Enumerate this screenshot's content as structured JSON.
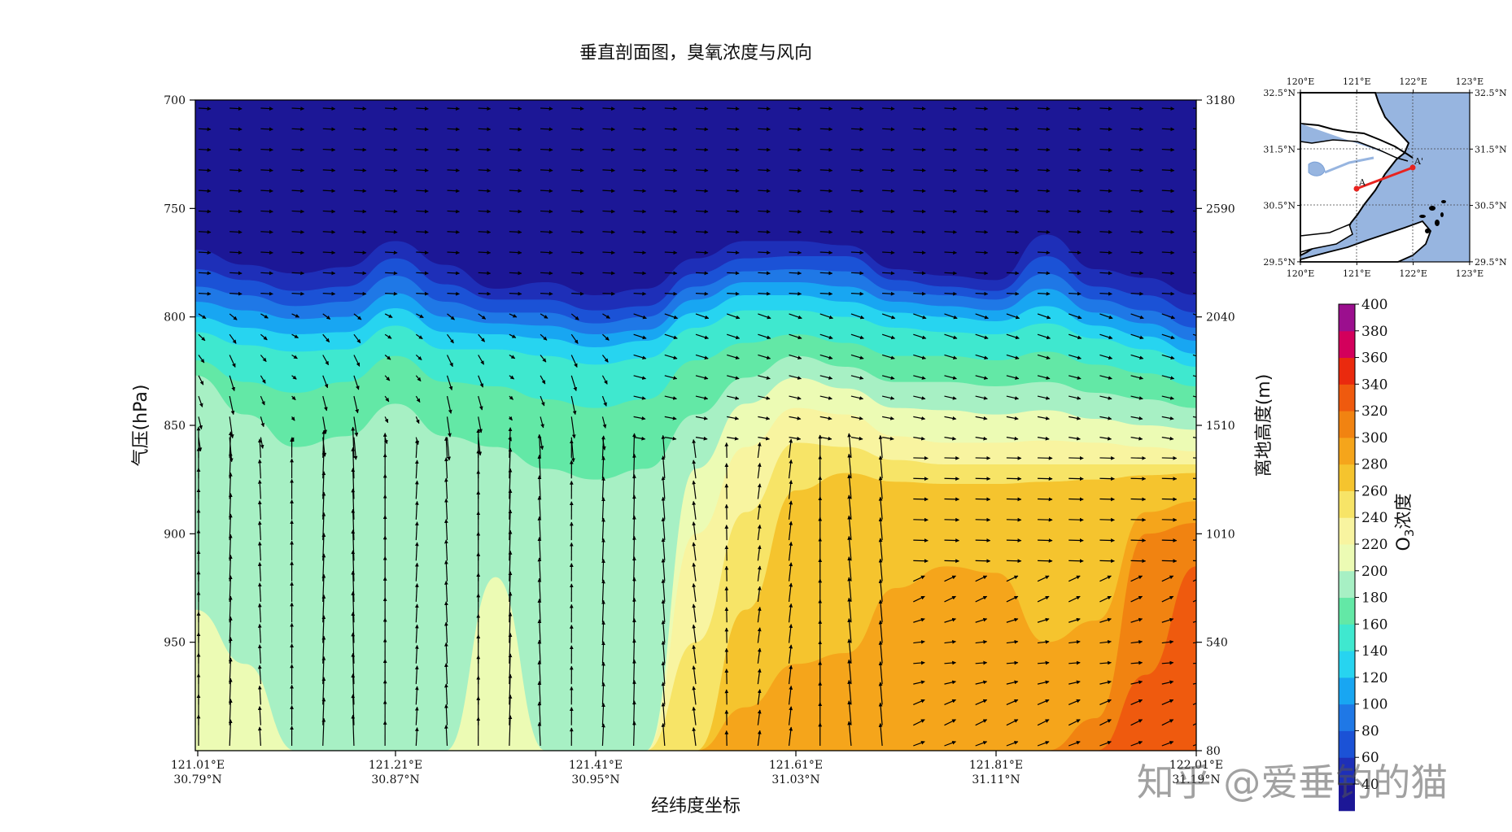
{
  "chart_data": {
    "type": "heatmap",
    "title": "垂直剖面图，臭氧浓度与风向",
    "xlabel": "经纬度坐标",
    "ylabel": "气压(hPa)",
    "y2label": "离地高度(m)",
    "colorbar_label_prefix": "O",
    "colorbar_label_sub": "3",
    "colorbar_label_suffix": "浓度",
    "x_ticks": [
      {
        "lon": "121.01°E",
        "lat": "30.79°N"
      },
      {
        "lon": "121.21°E",
        "lat": "30.87°N"
      },
      {
        "lon": "121.41°E",
        "lat": "30.95°N"
      },
      {
        "lon": "121.61°E",
        "lat": "31.03°N"
      },
      {
        "lon": "121.81°E",
        "lat": "31.11°N"
      },
      {
        "lon": "122.01°E",
        "lat": "31.19°N"
      }
    ],
    "y_left_ticks": [
      "700",
      "750",
      "800",
      "850",
      "900",
      "950"
    ],
    "y_left_values": [
      700,
      750,
      800,
      850,
      900,
      950
    ],
    "ylim": [
      1000,
      700
    ],
    "y_right_ticks": [
      "3180",
      "2590",
      "2040",
      "1510",
      "1010",
      "540",
      "80"
    ],
    "y_right_values": [
      700,
      750,
      800,
      850,
      900,
      950,
      1000
    ],
    "colorbar_levels": [
      "40",
      "60",
      "80",
      "100",
      "120",
      "140",
      "160",
      "180",
      "200",
      "220",
      "240",
      "260",
      "280",
      "300",
      "320",
      "340",
      "360",
      "380",
      "400"
    ],
    "colorbar_colors": [
      "#1c1796",
      "#1e2fb8",
      "#1b52d6",
      "#1f78e6",
      "#18a6f2",
      "#27d4f0",
      "#3fe8cf",
      "#63e8a6",
      "#a7f0c4",
      "#ecfbb4",
      "#f8f4a0",
      "#f7e467",
      "#f5c42e",
      "#f5a51b",
      "#f18311",
      "#ef5a0e",
      "#ea2a0e",
      "#d3005c",
      "#9b0f8e"
    ],
    "boundaries": {
      "levels": [
        60,
        80,
        100,
        120,
        140,
        160,
        180,
        200,
        220,
        240,
        260,
        280,
        300,
        320,
        340
      ],
      "description_unit": "pressure_hPa_by_column"
    },
    "columns": [
      0,
      0.05,
      0.1,
      0.15,
      0.2,
      0.25,
      0.3,
      0.35,
      0.4,
      0.45,
      0.5,
      0.55,
      0.6,
      0.65,
      0.7,
      0.75,
      0.8,
      0.85,
      0.9,
      0.95,
      1.0
    ],
    "contours_hPa": {
      "60": [
        769,
        776,
        780,
        777,
        765,
        776,
        787,
        784,
        790,
        787,
        773,
        765,
        765,
        767,
        778,
        781,
        783,
        762,
        778,
        782,
        790
      ],
      "80": [
        778,
        783,
        788,
        786,
        773,
        785,
        792,
        792,
        797,
        795,
        780,
        773,
        772,
        772,
        783,
        786,
        788,
        772,
        786,
        790,
        798
      ],
      "100": [
        786,
        790,
        795,
        793,
        781,
        793,
        798,
        798,
        803,
        800,
        786,
        779,
        778,
        779,
        788,
        790,
        792,
        780,
        792,
        797,
        805
      ],
      "120": [
        793,
        797,
        801,
        800,
        789,
        800,
        803,
        804,
        808,
        806,
        792,
        784,
        784,
        786,
        793,
        795,
        797,
        787,
        798,
        803,
        811
      ],
      "140": [
        800,
        805,
        808,
        807,
        796,
        807,
        808,
        810,
        814,
        811,
        798,
        790,
        790,
        793,
        798,
        800,
        802,
        795,
        804,
        809,
        817
      ],
      "160": [
        807,
        813,
        816,
        815,
        804,
        815,
        815,
        818,
        822,
        819,
        805,
        797,
        797,
        800,
        805,
        807,
        808,
        803,
        810,
        815,
        823
      ],
      "180": [
        820,
        830,
        835,
        830,
        818,
        830,
        832,
        838,
        842,
        838,
        820,
        812,
        808,
        812,
        818,
        818,
        820,
        816,
        822,
        826,
        832
      ],
      "200": [
        827,
        845,
        860,
        855,
        840,
        855,
        860,
        870,
        875,
        870,
        845,
        828,
        818,
        823,
        830,
        830,
        832,
        830,
        835,
        838,
        842
      ],
      "220": [
        935,
        960,
        1000,
        1000,
        1000,
        1000,
        920,
        1000,
        1000,
        1000,
        870,
        840,
        828,
        833,
        842,
        843,
        845,
        843,
        847,
        850,
        852
      ],
      "240": [
        1000,
        1000,
        1000,
        1000,
        1000,
        1000,
        1000,
        1000,
        1000,
        1000,
        900,
        860,
        842,
        845,
        855,
        858,
        858,
        857,
        858,
        860,
        862
      ],
      "260": [
        1000,
        1000,
        1000,
        1000,
        1000,
        1000,
        1000,
        1000,
        1000,
        1000,
        950,
        890,
        858,
        860,
        866,
        868,
        868,
        868,
        868,
        868,
        868
      ],
      "280": [
        1000,
        1000,
        1000,
        1000,
        1000,
        1000,
        1000,
        1000,
        1000,
        1000,
        1000,
        935,
        880,
        872,
        876,
        877,
        877,
        876,
        875,
        873,
        872
      ],
      "300": [
        1000,
        1000,
        1000,
        1000,
        1000,
        1000,
        1000,
        1000,
        1000,
        1000,
        1000,
        980,
        960,
        955,
        925,
        915,
        918,
        950,
        940,
        890,
        885
      ],
      "320": [
        1000,
        1000,
        1000,
        1000,
        1000,
        1000,
        1000,
        1000,
        1000,
        1000,
        1000,
        1000,
        1000,
        1000,
        1000,
        1000,
        1000,
        1000,
        985,
        900,
        895
      ],
      "340": [
        1000,
        1000,
        1000,
        1000,
        1000,
        1000,
        1000,
        1000,
        1000,
        1000,
        1000,
        1000,
        1000,
        1000,
        1000,
        1000,
        1000,
        1000,
        1000,
        965,
        915
      ]
    }
  },
  "inset_map": {
    "x_ticks": [
      "120°E",
      "121°E",
      "122°E",
      "123°E"
    ],
    "y_ticks": [
      "32.5°N",
      "31.5°N",
      "30.5°N",
      "29.5°N"
    ],
    "label_a": "A",
    "label_a_prime": "A'",
    "land_color": "#ffffff",
    "sea_color": "#97b5e0",
    "line_color": "#e8231f"
  },
  "watermark": "知乎 @爱垂钓的猫"
}
